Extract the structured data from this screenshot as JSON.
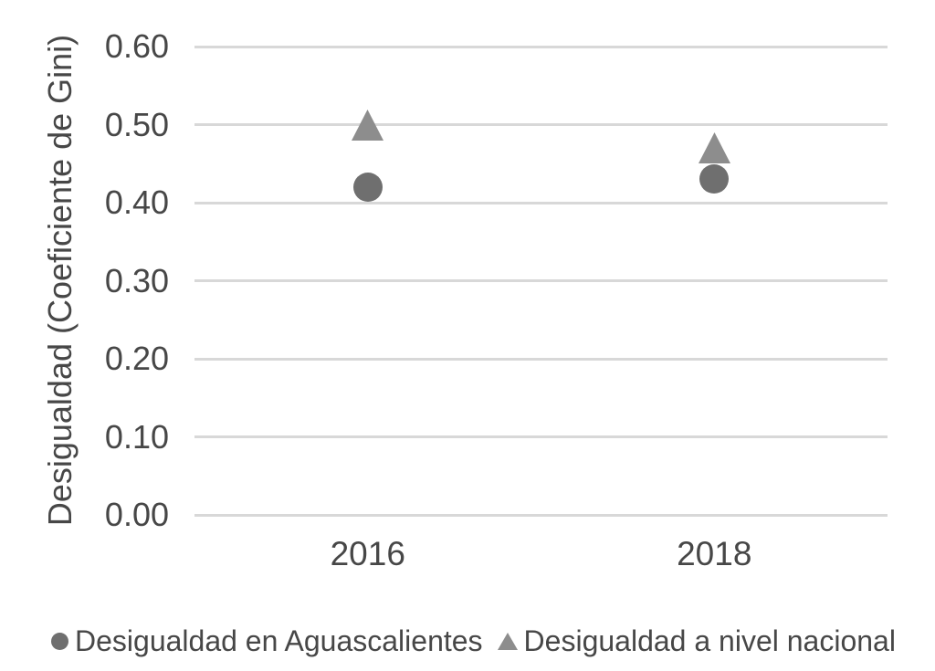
{
  "chart_data": {
    "type": "scatter",
    "title": "",
    "xlabel": "",
    "ylabel": "Desigualdad (Coeficiente de Gini)",
    "categories": [
      "2016",
      "2018"
    ],
    "series": [
      {
        "name": "Desigualdad en Aguascalientes",
        "marker": "circle",
        "color": "#6f6f6f",
        "values": [
          0.42,
          0.43
        ]
      },
      {
        "name": "Desigualdad a nivel nacional",
        "marker": "triangle",
        "color": "#8d8d8d",
        "values": [
          0.5,
          0.47
        ]
      }
    ],
    "ylim": [
      0.0,
      0.6
    ],
    "ytick_step": 0.1,
    "ytick_format": "2-decimals",
    "grid": true,
    "legend_position": "bottom"
  },
  "colors": {
    "background": "#ffffff",
    "text": "#474747",
    "gridline": "#d8d8d8"
  }
}
